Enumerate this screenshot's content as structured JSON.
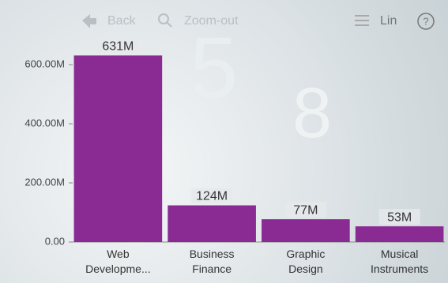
{
  "toolbar": {
    "back": "Back",
    "zoom_out": "Zoom-out",
    "scale": "Lin"
  },
  "chart_data": {
    "type": "bar",
    "categories": [
      "Web Developme...",
      "Business Finance",
      "Graphic Design",
      "Musical Instruments"
    ],
    "values": [
      631,
      124,
      77,
      53
    ],
    "value_labels": [
      "631M",
      "124M",
      "77M",
      "53M"
    ],
    "color": "#8a2b94",
    "ylim": [
      0,
      700
    ],
    "yticks": [
      {
        "value": 0,
        "label": "0.00"
      },
      {
        "value": 200,
        "label": "200.00M"
      },
      {
        "value": 400,
        "label": "400.00M"
      },
      {
        "value": 600,
        "label": "600.00M"
      }
    ]
  }
}
